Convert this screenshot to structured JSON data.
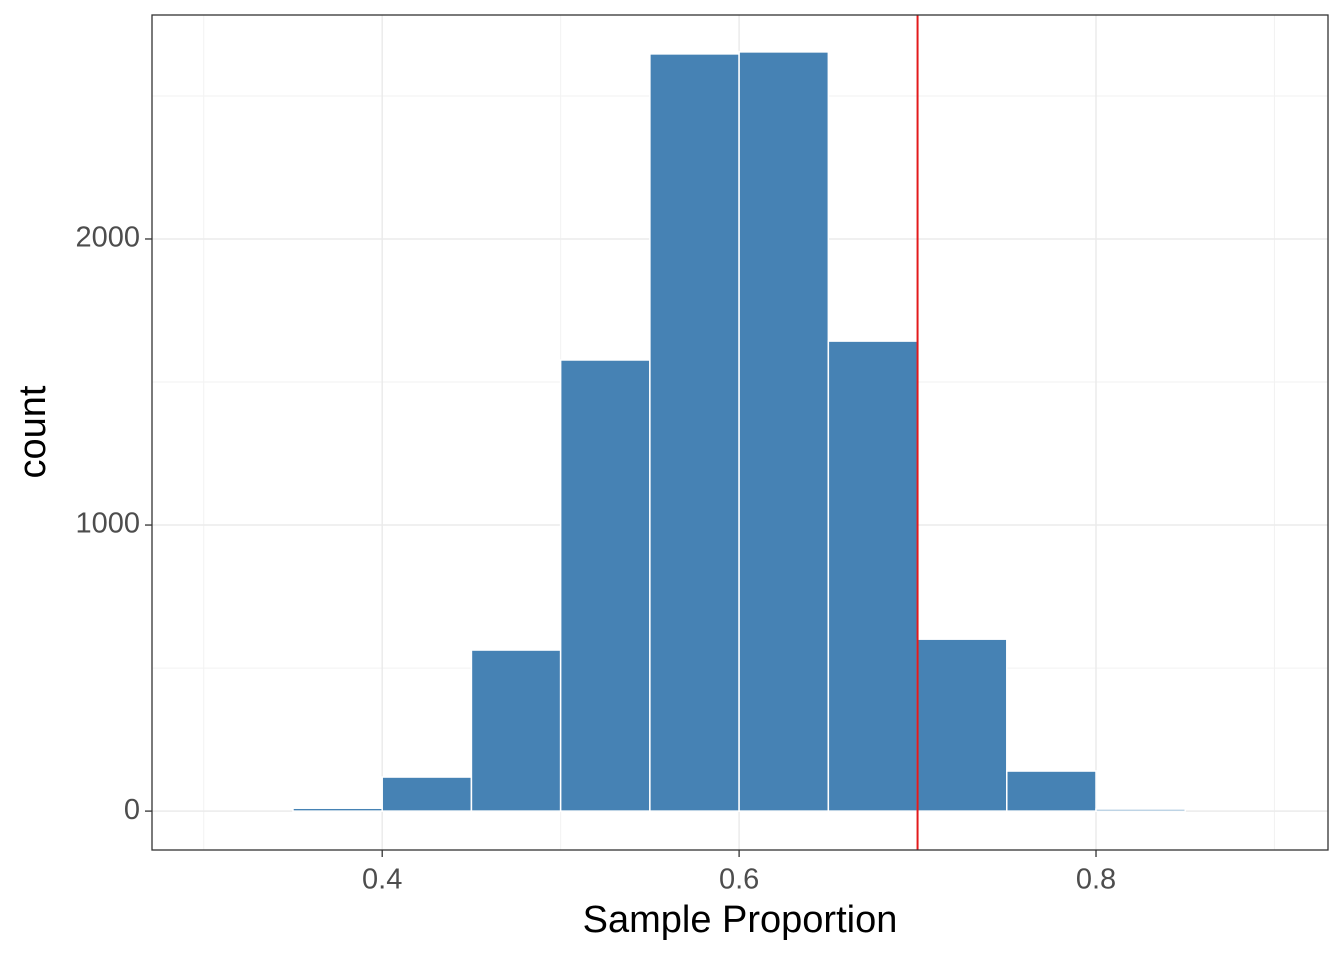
{
  "chart_data": {
    "type": "histogram",
    "x_label": "Sample Proportion",
    "y_label": "count",
    "bins": [
      0.35,
      0.4,
      0.45,
      0.5,
      0.55,
      0.6,
      0.65,
      0.7,
      0.75,
      0.8,
      0.85
    ],
    "values": [
      10,
      119,
      563,
      1577,
      2647,
      2654,
      1643,
      601,
      140,
      7
    ],
    "color": "#4682b4",
    "edge_color": "#ffffff",
    "vline": 0.7,
    "vline_color": "#e31a1c",
    "xlim": [
      0.271,
      0.93
    ],
    "xticks": [
      0.4,
      0.6,
      0.8
    ],
    "ylim": [
      -136,
      2783
    ],
    "yticks": [
      0,
      1000,
      2000
    ],
    "grid": true
  }
}
